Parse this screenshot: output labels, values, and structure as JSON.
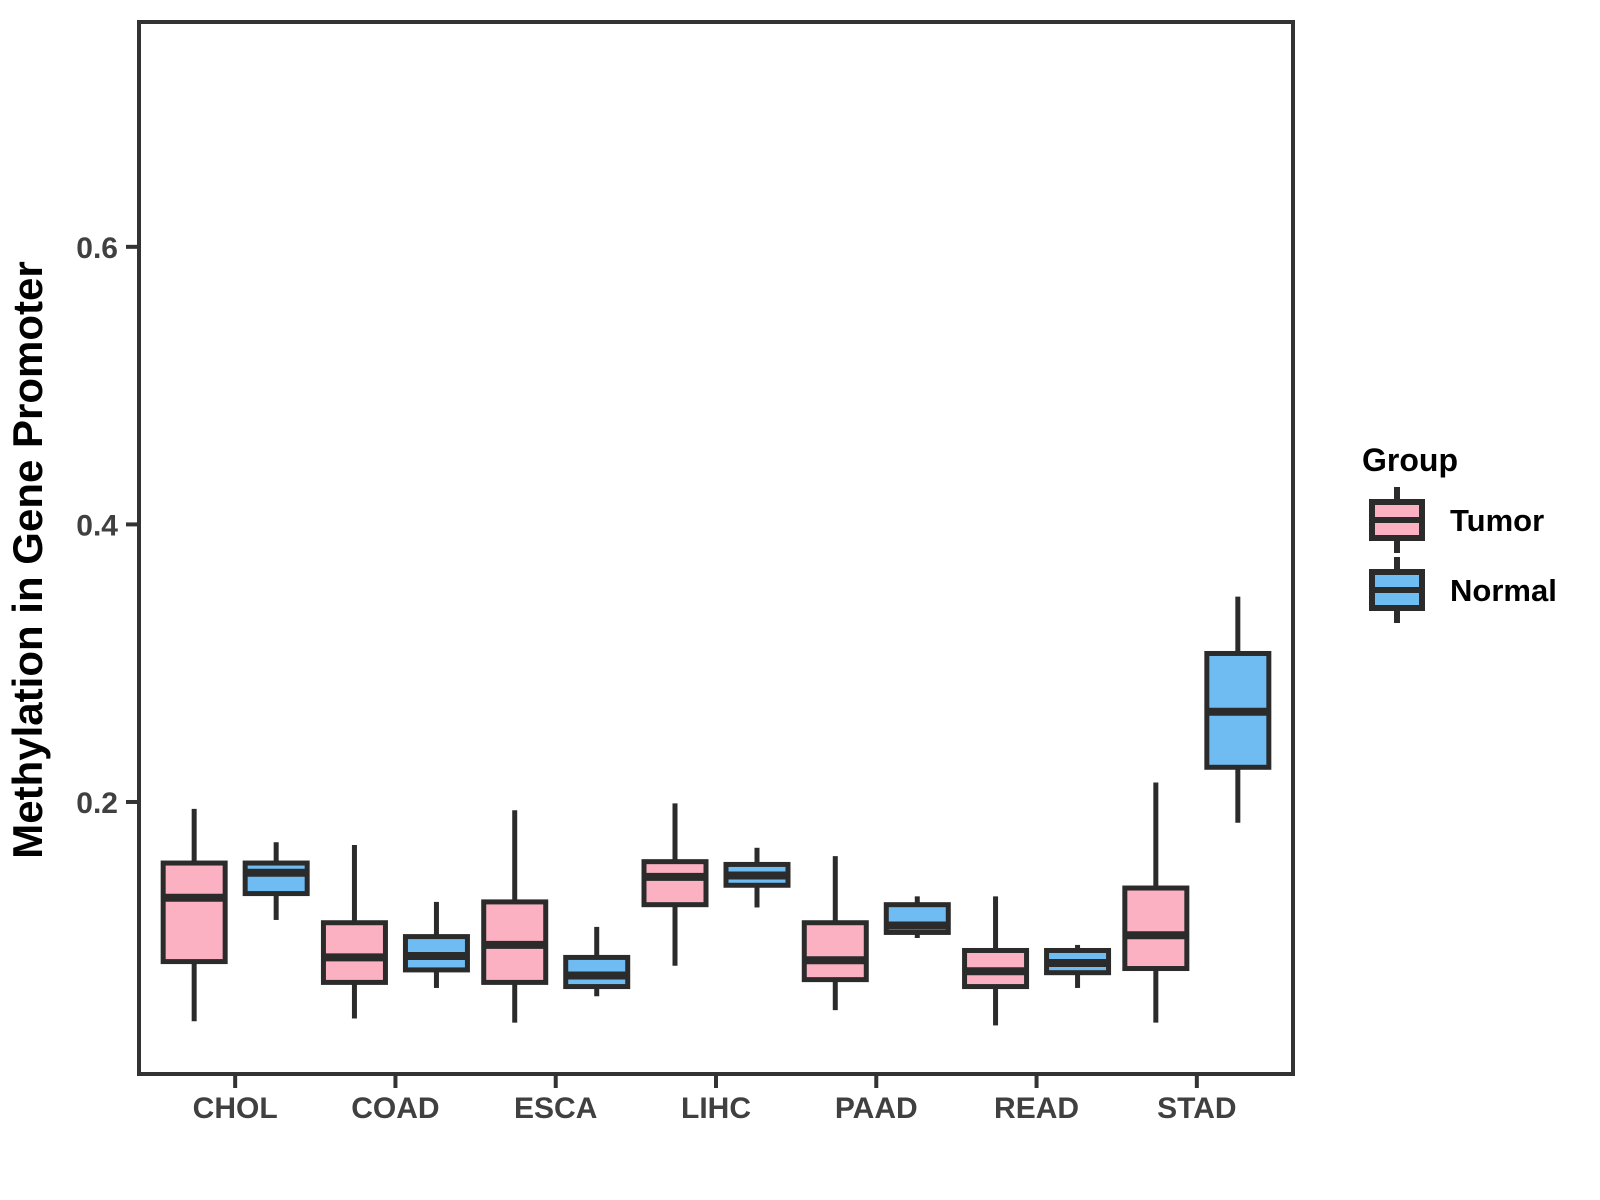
{
  "chart_data": {
    "type": "boxplot",
    "title": "",
    "xlabel": "",
    "ylabel": "Methylation in Gene Promoter",
    "categories": [
      "CHOL",
      "COAD",
      "ESCA",
      "LIHC",
      "PAAD",
      "READ",
      "STAD"
    ],
    "yticks": [
      {
        "value": 0.2,
        "label": "0.2"
      },
      {
        "value": 0.4,
        "label": "0.4"
      },
      {
        "value": 0.6,
        "label": "0.6"
      }
    ],
    "ylim": [
      0.004,
      0.762
    ],
    "grid": "off",
    "legend_position": "right",
    "legend": {
      "title": "Group",
      "items": [
        {
          "label": "Tumor"
        },
        {
          "label": "Normal"
        }
      ]
    },
    "style": {
      "tumor_fill": "#FBB1C2",
      "normal_fill": "#6FBCF2",
      "box_border": "#2B2B2B",
      "axis_color": "#333333",
      "tick_label_color": "#404040",
      "axis_title_color": "#000000"
    },
    "series": [
      {
        "name": "Tumor",
        "color": "#FBB1C2",
        "boxes": [
          {
            "category": "CHOL",
            "min": 0.042,
            "q1": 0.085,
            "median": 0.131,
            "q3": 0.156,
            "max": 0.195
          },
          {
            "category": "COAD",
            "min": 0.044,
            "q1": 0.07,
            "median": 0.088,
            "q3": 0.113,
            "max": 0.169
          },
          {
            "category": "ESCA",
            "min": 0.041,
            "q1": 0.07,
            "median": 0.097,
            "q3": 0.128,
            "max": 0.194
          },
          {
            "category": "LIHC",
            "min": 0.082,
            "q1": 0.126,
            "median": 0.146,
            "q3": 0.157,
            "max": 0.199
          },
          {
            "category": "PAAD",
            "min": 0.05,
            "q1": 0.072,
            "median": 0.086,
            "q3": 0.113,
            "max": 0.161
          },
          {
            "category": "READ",
            "min": 0.039,
            "q1": 0.067,
            "median": 0.078,
            "q3": 0.093,
            "max": 0.132
          },
          {
            "category": "STAD",
            "min": 0.041,
            "q1": 0.08,
            "median": 0.104,
            "q3": 0.138,
            "max": 0.214
          }
        ]
      },
      {
        "name": "Normal",
        "color": "#6FBCF2",
        "boxes": [
          {
            "category": "CHOL",
            "min": 0.115,
            "q1": 0.134,
            "median": 0.149,
            "q3": 0.156,
            "max": 0.171
          },
          {
            "category": "COAD",
            "min": 0.066,
            "q1": 0.079,
            "median": 0.089,
            "q3": 0.103,
            "max": 0.128
          },
          {
            "category": "ESCA",
            "min": 0.06,
            "q1": 0.067,
            "median": 0.075,
            "q3": 0.088,
            "max": 0.11
          },
          {
            "category": "LIHC",
            "min": 0.124,
            "q1": 0.14,
            "median": 0.147,
            "q3": 0.155,
            "max": 0.167
          },
          {
            "category": "PAAD",
            "min": 0.102,
            "q1": 0.106,
            "median": 0.111,
            "q3": 0.126,
            "max": 0.132
          },
          {
            "category": "READ",
            "min": 0.066,
            "q1": 0.077,
            "median": 0.084,
            "q3": 0.093,
            "max": 0.097
          },
          {
            "category": "STAD",
            "min": 0.185,
            "q1": 0.225,
            "median": 0.265,
            "q3": 0.307,
            "max": 0.348
          }
        ]
      }
    ]
  }
}
